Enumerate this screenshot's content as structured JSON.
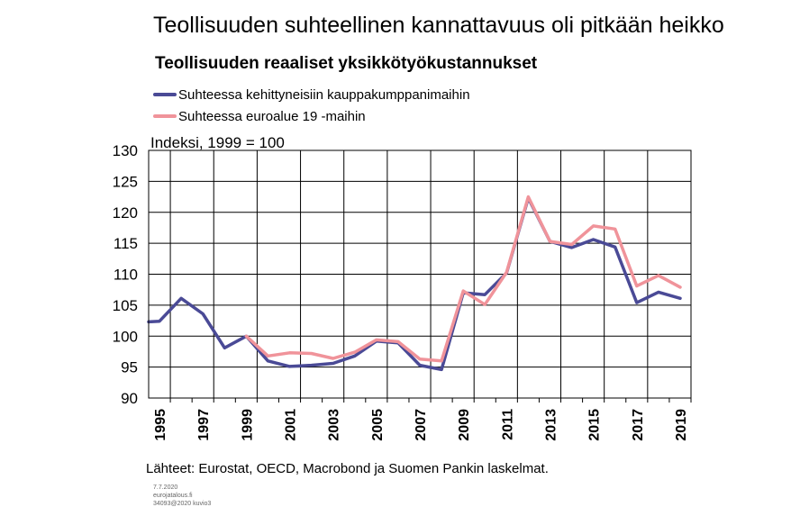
{
  "title": "Teollisuuden suhteellinen kannattavuus oli pitkään heikko",
  "subtitle": "Teollisuuden reaaliset yksikkötyökustannukset",
  "footer": {
    "source": "Lähteet: Eurostat, OECD, Macrobond ja Suomen Pankin laskelmat.",
    "meta": [
      "7.7.2020",
      "eurojatalous.fi",
      "34093@2020  kuvio3"
    ]
  },
  "chart_data": {
    "type": "line",
    "title": "Teollisuuden reaaliset yksikkötyökustannukset",
    "ylabel": "Indeksi, 1999 = 100",
    "xlabel": "",
    "ylim": [
      90,
      130
    ],
    "yticks": [
      90,
      95,
      100,
      105,
      110,
      115,
      120,
      125,
      130
    ],
    "xlim": [
      1995,
      2020
    ],
    "xticks": [
      1995,
      1997,
      1999,
      2001,
      2003,
      2005,
      2007,
      2009,
      2011,
      2013,
      2015,
      2017,
      2019
    ],
    "grid": true,
    "legend_position": "top-left",
    "series": [
      {
        "name": "Suhteessa kehittyneisiin kauppakumppanimaihin",
        "color": "#4a4a96",
        "x": [
          1995,
          1995.5,
          1996.5,
          1997.5,
          1998.5,
          1999.5,
          2000.5,
          2001.5,
          2002.5,
          2003.5,
          2004.5,
          2005.5,
          2006.5,
          2007.5,
          2008.5,
          2009.5,
          2010.5,
          2011.5,
          2012.5,
          2013.5,
          2014.5,
          2015.5,
          2016.5,
          2017.5,
          2018.5,
          2019.5
        ],
        "values": [
          102.3,
          102.4,
          106.1,
          103.6,
          98.1,
          100.0,
          96.0,
          95.1,
          95.3,
          95.6,
          96.8,
          99.2,
          98.9,
          95.3,
          94.6,
          107.0,
          106.7,
          110.2,
          122.3,
          115.3,
          114.3,
          115.6,
          114.4,
          105.4,
          107.1,
          106.1
        ]
      },
      {
        "name": "Suhteessa euroalue 19 -maihin",
        "color": "#f0939a",
        "x": [
          1999.5,
          2000.5,
          2001.5,
          2002.5,
          2003.5,
          2004.5,
          2005.5,
          2006.5,
          2007.5,
          2008.5,
          2009.5,
          2010.5,
          2011.5,
          2012.5,
          2013.5,
          2014.5,
          2015.5,
          2016.5,
          2017.5,
          2018.5,
          2019.5
        ],
        "values": [
          100.0,
          96.8,
          97.3,
          97.2,
          96.4,
          97.4,
          99.4,
          99.1,
          96.3,
          96.0,
          107.3,
          105.1,
          110.3,
          122.5,
          115.3,
          114.8,
          117.8,
          117.3,
          108.1,
          109.8,
          107.9
        ]
      }
    ]
  }
}
